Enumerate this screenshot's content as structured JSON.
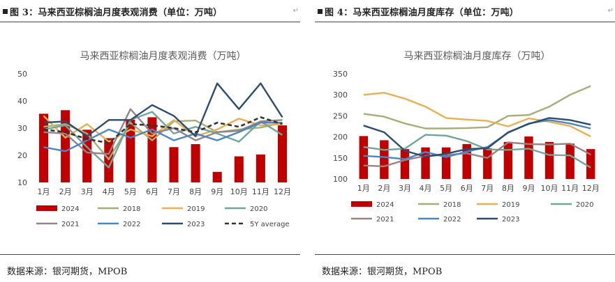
{
  "left_panel": {
    "caption": "图 3：马来西亚棕榈油月度表观消费（单位：万吨）",
    "source": "数据来源：银河期货，MPOB",
    "return_mark": "↵"
  },
  "right_panel": {
    "caption": "图 4：马来西亚棕榈油月度库存（单位：万吨）",
    "source": "数据来源：银河期货，MPOB",
    "return_mark": "↵"
  },
  "chart_data": [
    {
      "type": "bar",
      "title": "马来西亚棕榈油月度表观消费（万吨）",
      "categories": [
        "1月",
        "2月",
        "3月",
        "4月",
        "5月",
        "6月",
        "7月",
        "8月",
        "9月",
        "10月",
        "11月",
        "12月"
      ],
      "ylim": [
        10,
        50
      ],
      "yticks": [
        10,
        20,
        30,
        40,
        50
      ],
      "bar_series": {
        "name": "2024",
        "color": "#C00000",
        "values": [
          35.3,
          36.6,
          29.4,
          26.3,
          33.1,
          34.0,
          23.0,
          24.1,
          13.9,
          19.6,
          20.3,
          31.0
        ]
      },
      "line_series": [
        {
          "name": "2018",
          "color": "#A5AE78",
          "dash": false,
          "values": [
            30.5,
            31.5,
            28.0,
            18.5,
            32.0,
            25.5,
            32.5,
            32.8,
            28.5,
            29.5,
            30.2,
            32.0
          ]
        },
        {
          "name": "2019",
          "color": "#E8B052",
          "dash": false,
          "values": [
            34.5,
            26.5,
            31.5,
            25.0,
            29.5,
            27.0,
            33.0,
            27.0,
            29.5,
            33.5,
            31.0,
            31.5
          ]
        },
        {
          "name": "2020",
          "color": "#6FA59A",
          "dash": false,
          "values": [
            29.5,
            31.0,
            23.0,
            15.5,
            33.0,
            36.0,
            28.0,
            30.5,
            28.0,
            25.0,
            32.5,
            27.5
          ]
        },
        {
          "name": "2021",
          "color": "#958385",
          "dash": false,
          "values": [
            28.5,
            28.0,
            21.0,
            20.5,
            37.0,
            28.0,
            30.0,
            25.5,
            28.5,
            29.0,
            32.5,
            33.0
          ]
        },
        {
          "name": "2022",
          "color": "#4A86C4",
          "dash": false,
          "values": [
            23.0,
            21.5,
            25.5,
            29.5,
            26.5,
            29.5,
            25.5,
            28.0,
            25.5,
            28.5,
            32.0,
            32.0
          ]
        },
        {
          "name": "2023",
          "color": "#2C4B6E",
          "dash": false,
          "values": [
            32.0,
            32.5,
            27.0,
            33.0,
            33.0,
            38.5,
            34.5,
            27.0,
            46.5,
            37.0,
            46.5,
            34.0
          ]
        },
        {
          "name": "5Y average",
          "color": "#333333",
          "dash": true,
          "values": [
            29.5,
            28.5,
            26.0,
            24.5,
            31.5,
            31.0,
            30.0,
            28.5,
            32.0,
            30.5,
            34.0,
            31.5
          ]
        }
      ]
    },
    {
      "type": "bar",
      "title": "马来西亚棕榈油月度库存（万吨）",
      "categories": [
        "1月",
        "2月",
        "3月",
        "4月",
        "5月",
        "6月",
        "7月",
        "8月",
        "9月",
        "10月",
        "11月",
        "12月"
      ],
      "ylim": [
        100,
        350
      ],
      "yticks": [
        100,
        150,
        200,
        250,
        300,
        350
      ],
      "bar_series": {
        "name": "2024",
        "color": "#C00000",
        "values": [
          202,
          192,
          171,
          175,
          175,
          183,
          173,
          188,
          201,
          188,
          184,
          171
        ]
      },
      "line_series": [
        {
          "name": "2018",
          "color": "#A5AE78",
          "dash": false,
          "values": [
            255,
            248,
            232,
            220,
            220,
            221,
            223,
            250,
            252,
            272,
            300,
            321
          ]
        },
        {
          "name": "2019",
          "color": "#E8B052",
          "dash": false,
          "values": [
            300,
            305,
            291,
            272,
            245,
            241,
            238,
            225,
            244,
            236,
            226,
            201
          ]
        },
        {
          "name": "2020",
          "color": "#6FA59A",
          "dash": false,
          "values": [
            176,
            169,
            172,
            205,
            203,
            190,
            170,
            169,
            172,
            157,
            156,
            127
          ]
        },
        {
          "name": "2021",
          "color": "#958385",
          "dash": false,
          "values": [
            132,
            130,
            145,
            155,
            157,
            161,
            150,
            187,
            183,
            182,
            184,
            158
          ]
        },
        {
          "name": "2022",
          "color": "#4A86C4",
          "dash": false,
          "values": [
            155,
            152,
            147,
            164,
            152,
            165,
            176,
            210,
            232,
            240,
            232,
            220
          ]
        },
        {
          "name": "2023",
          "color": "#2C4B6E",
          "dash": false,
          "values": [
            227,
            211,
            167,
            153,
            160,
            171,
            173,
            211,
            231,
            245,
            240,
            229
          ]
        }
      ]
    }
  ]
}
